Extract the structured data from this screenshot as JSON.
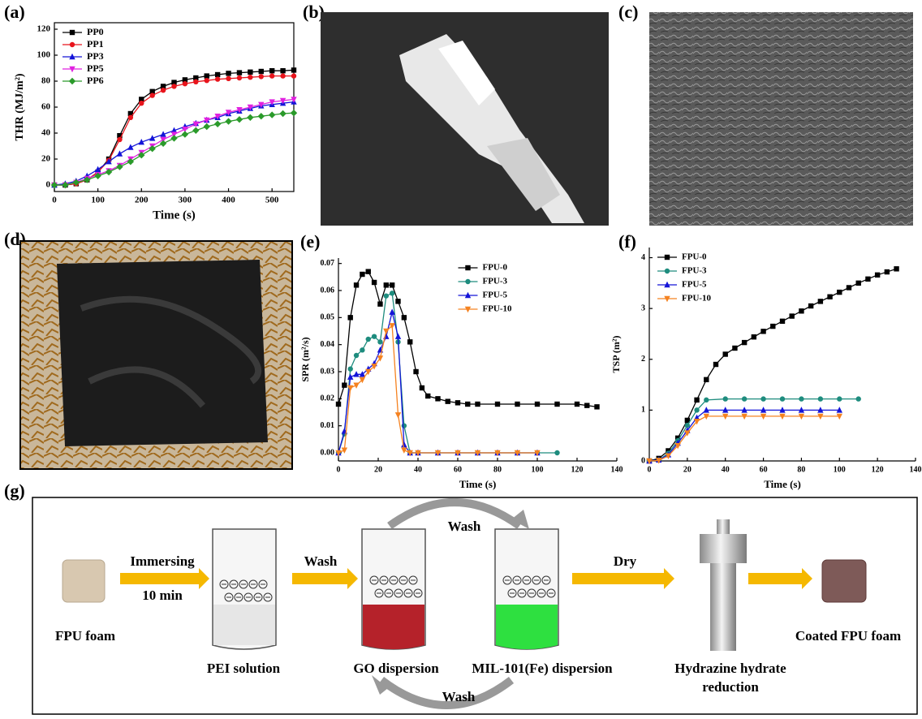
{
  "panels": [
    "(a)",
    "(b)",
    "(c)",
    "(d)",
    "(e)",
    "(f)",
    "(g)"
  ],
  "chart_data": [
    {
      "type": "line",
      "xlabel": "Time (s)",
      "ylabel": "THR (MJ/m²)",
      "xlim": [
        0,
        550
      ],
      "ylim": [
        -5,
        125
      ],
      "xticks": [
        0,
        100,
        200,
        300,
        400,
        500
      ],
      "yticks": [
        0,
        20,
        40,
        60,
        80,
        100,
        120
      ],
      "legend": "upper left",
      "x": [
        0,
        25,
        50,
        75,
        100,
        125,
        150,
        175,
        200,
        225,
        250,
        275,
        300,
        325,
        350,
        375,
        400,
        425,
        450,
        475,
        500,
        525,
        550
      ],
      "series": [
        {
          "name": "PP0",
          "color": "#000000",
          "marker": "square",
          "values": [
            0,
            0,
            1,
            4,
            10,
            20,
            38,
            55,
            66,
            72,
            76,
            79,
            81,
            82.5,
            84,
            85,
            86,
            86.5,
            87,
            87.5,
            88,
            88,
            88.5
          ]
        },
        {
          "name": "PP1",
          "color": "#e8141c",
          "marker": "circle",
          "values": [
            0,
            0,
            1,
            4,
            10,
            19,
            35,
            52,
            63,
            69,
            73,
            76,
            78,
            79.5,
            80.5,
            81.5,
            82,
            82.5,
            83,
            83.5,
            84,
            84,
            84
          ]
        },
        {
          "name": "PP3",
          "color": "#1414d8",
          "marker": "triangle-up",
          "values": [
            0,
            1,
            3,
            7,
            12,
            18,
            24,
            29,
            33,
            36,
            39,
            42,
            45,
            47.5,
            50,
            52,
            55,
            57,
            59,
            61,
            62,
            63,
            64
          ]
        },
        {
          "name": "PP5",
          "color": "#e020e0",
          "marker": "triangle-down",
          "values": [
            0,
            0,
            2,
            5,
            8,
            11,
            15,
            20,
            25,
            30,
            35,
            39,
            43,
            47,
            50,
            53,
            56,
            58,
            60,
            62,
            64,
            65,
            66
          ]
        },
        {
          "name": "PP6",
          "color": "#2a9a2a",
          "marker": "diamond",
          "values": [
            0,
            0,
            2,
            4,
            7,
            10,
            14,
            18,
            23,
            28,
            32,
            36,
            39,
            42,
            45,
            47,
            49,
            50.5,
            52,
            53,
            54,
            55,
            55.5
          ]
        }
      ]
    },
    {
      "type": "line",
      "xlabel": "Time (s)",
      "ylabel": "SPR (m²/s)",
      "xlim": [
        0,
        140
      ],
      "ylim": [
        -0.003,
        0.072
      ],
      "xticks": [
        0,
        20,
        40,
        60,
        80,
        100,
        120,
        140
      ],
      "yticks": [
        {
          "value": 0,
          "label": "0.00"
        },
        0.01,
        0.02,
        0.03,
        0.04,
        0.05,
        0.06,
        0.07
      ],
      "legend": "upper right",
      "series": [
        {
          "name": "FPU-0",
          "color": "#000000",
          "marker": "square",
          "x": [
            0,
            3,
            6,
            9,
            12,
            15,
            18,
            21,
            24,
            27,
            30,
            33,
            36,
            39,
            42,
            45,
            50,
            55,
            60,
            65,
            70,
            80,
            90,
            100,
            110,
            120,
            125,
            130
          ],
          "values": [
            0.018,
            0.025,
            0.05,
            0.062,
            0.066,
            0.067,
            0.063,
            0.055,
            0.062,
            0.062,
            0.056,
            0.05,
            0.041,
            0.03,
            0.024,
            0.021,
            0.02,
            0.019,
            0.0185,
            0.018,
            0.018,
            0.018,
            0.018,
            0.018,
            0.018,
            0.018,
            0.0175,
            0.017
          ]
        },
        {
          "name": "FPU-3",
          "color": "#1e8c7e",
          "marker": "circle",
          "x": [
            0,
            3,
            6,
            9,
            12,
            15,
            18,
            21,
            24,
            27,
            30,
            33,
            36,
            40,
            50,
            60,
            70,
            80,
            90,
            100,
            110
          ],
          "values": [
            0,
            0.007,
            0.031,
            0.036,
            0.038,
            0.042,
            0.043,
            0.041,
            0.058,
            0.059,
            0.041,
            0.01,
            0,
            0,
            0,
            0,
            0,
            0,
            0,
            0,
            0
          ]
        },
        {
          "name": "FPU-5",
          "color": "#1414d8",
          "marker": "triangle-up",
          "x": [
            0,
            3,
            6,
            9,
            12,
            15,
            18,
            21,
            24,
            27,
            30,
            33,
            36,
            40,
            50,
            60,
            70,
            80,
            90,
            100
          ],
          "values": [
            0,
            0.008,
            0.028,
            0.029,
            0.029,
            0.031,
            0.033,
            0.038,
            0.043,
            0.052,
            0.043,
            0.003,
            0,
            0,
            0,
            0,
            0,
            0,
            0,
            0
          ]
        },
        {
          "name": "FPU-10",
          "color": "#f58220",
          "marker": "triangle-down",
          "x": [
            0,
            3,
            6,
            9,
            12,
            15,
            18,
            21,
            24,
            27,
            30,
            33,
            36,
            40,
            50,
            60,
            70,
            80,
            90,
            100
          ],
          "values": [
            0,
            0.001,
            0.024,
            0.025,
            0.027,
            0.03,
            0.032,
            0.035,
            0.045,
            0.047,
            0.014,
            0.001,
            0,
            0,
            0,
            0,
            0,
            0,
            0,
            0
          ]
        }
      ]
    },
    {
      "type": "line",
      "xlabel": "Time (s)",
      "ylabel": "TSP (m²)",
      "xlim": [
        0,
        140
      ],
      "ylim": [
        0,
        4.2
      ],
      "xticks": [
        0,
        20,
        40,
        60,
        80,
        100,
        120,
        140
      ],
      "yticks": [
        0,
        1,
        2,
        3,
        4
      ],
      "legend": "upper left",
      "series": [
        {
          "name": "FPU-0",
          "color": "#000000",
          "marker": "square",
          "x": [
            0,
            5,
            10,
            15,
            20,
            25,
            30,
            35,
            40,
            45,
            50,
            55,
            60,
            65,
            70,
            75,
            80,
            85,
            90,
            95,
            100,
            105,
            110,
            115,
            120,
            125,
            130
          ],
          "values": [
            0,
            0.05,
            0.2,
            0.45,
            0.8,
            1.2,
            1.6,
            1.9,
            2.1,
            2.22,
            2.33,
            2.44,
            2.55,
            2.65,
            2.75,
            2.85,
            2.95,
            3.05,
            3.14,
            3.23,
            3.32,
            3.41,
            3.5,
            3.58,
            3.66,
            3.72,
            3.78
          ]
        },
        {
          "name": "FPU-3",
          "color": "#1e8c7e",
          "marker": "circle",
          "x": [
            0,
            5,
            10,
            15,
            20,
            25,
            30,
            40,
            50,
            60,
            70,
            80,
            90,
            100,
            110
          ],
          "values": [
            0,
            0.02,
            0.15,
            0.4,
            0.7,
            1.0,
            1.2,
            1.22,
            1.22,
            1.22,
            1.22,
            1.22,
            1.22,
            1.22,
            1.22
          ]
        },
        {
          "name": "FPU-5",
          "color": "#1414d8",
          "marker": "triangle-up",
          "x": [
            0,
            5,
            10,
            15,
            20,
            25,
            30,
            40,
            50,
            60,
            70,
            80,
            90,
            100
          ],
          "values": [
            0,
            0.02,
            0.12,
            0.35,
            0.6,
            0.85,
            1.0,
            1.0,
            1.0,
            1.0,
            1.0,
            1.0,
            1.0,
            1.0
          ]
        },
        {
          "name": "FPU-10",
          "color": "#f58220",
          "marker": "triangle-down",
          "x": [
            0,
            5,
            10,
            15,
            20,
            25,
            30,
            40,
            50,
            60,
            70,
            80,
            90,
            100
          ],
          "values": [
            0,
            0.01,
            0.1,
            0.3,
            0.55,
            0.78,
            0.88,
            0.88,
            0.88,
            0.88,
            0.88,
            0.88,
            0.88,
            0.88
          ]
        }
      ]
    }
  ],
  "diagram": {
    "foam": "FPU foam",
    "immerse": [
      "Immersing",
      "10 min"
    ],
    "beakers": [
      "PEI solution",
      "GO dispersion",
      "MIL-101(Fe) dispersion"
    ],
    "wash": [
      "Wash",
      "Wash",
      "Wash"
    ],
    "dry": "Dry",
    "reduction": [
      "Hydrazine hydrate",
      "reduction"
    ],
    "product": "Coated FPU foam"
  }
}
